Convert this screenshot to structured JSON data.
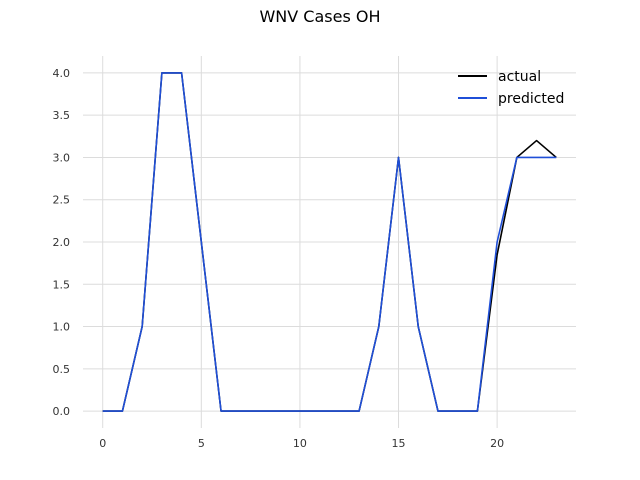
{
  "chart_data": {
    "type": "line",
    "title": "WNV Cases OH",
    "xlabel": "",
    "ylabel": "",
    "xlim": [
      -1,
      24
    ],
    "ylim": [
      -0.2,
      4.2
    ],
    "x_ticks": [
      0,
      5,
      10,
      15,
      20
    ],
    "y_ticks": [
      "0.0",
      "0.5",
      "1.0",
      "1.5",
      "2.0",
      "2.5",
      "3.0",
      "3.5",
      "4.0"
    ],
    "grid": true,
    "legend_position": "top-right",
    "series": [
      {
        "name": "actual",
        "color": "#000000",
        "x": [
          0,
          1,
          2,
          3,
          4,
          5,
          6,
          7,
          8,
          9,
          10,
          11,
          12,
          13,
          14,
          15,
          16,
          17,
          18,
          19,
          20,
          21,
          22,
          23
        ],
        "y": [
          0,
          0,
          1,
          4,
          4,
          2,
          0,
          0,
          0,
          0,
          0,
          0,
          0,
          0,
          1,
          3,
          1,
          0,
          0,
          0,
          1.85,
          3,
          3.2,
          3
        ]
      },
      {
        "name": "predicted",
        "color": "#1f4fd8",
        "x": [
          0,
          1,
          2,
          3,
          4,
          5,
          6,
          7,
          8,
          9,
          10,
          11,
          12,
          13,
          14,
          15,
          16,
          17,
          18,
          19,
          20,
          21,
          22,
          23
        ],
        "y": [
          0,
          0,
          1,
          4,
          4,
          2,
          0,
          0,
          0,
          0,
          0,
          0,
          0,
          0,
          1,
          3,
          1,
          0,
          0,
          0,
          2,
          3,
          3,
          3
        ]
      }
    ]
  }
}
